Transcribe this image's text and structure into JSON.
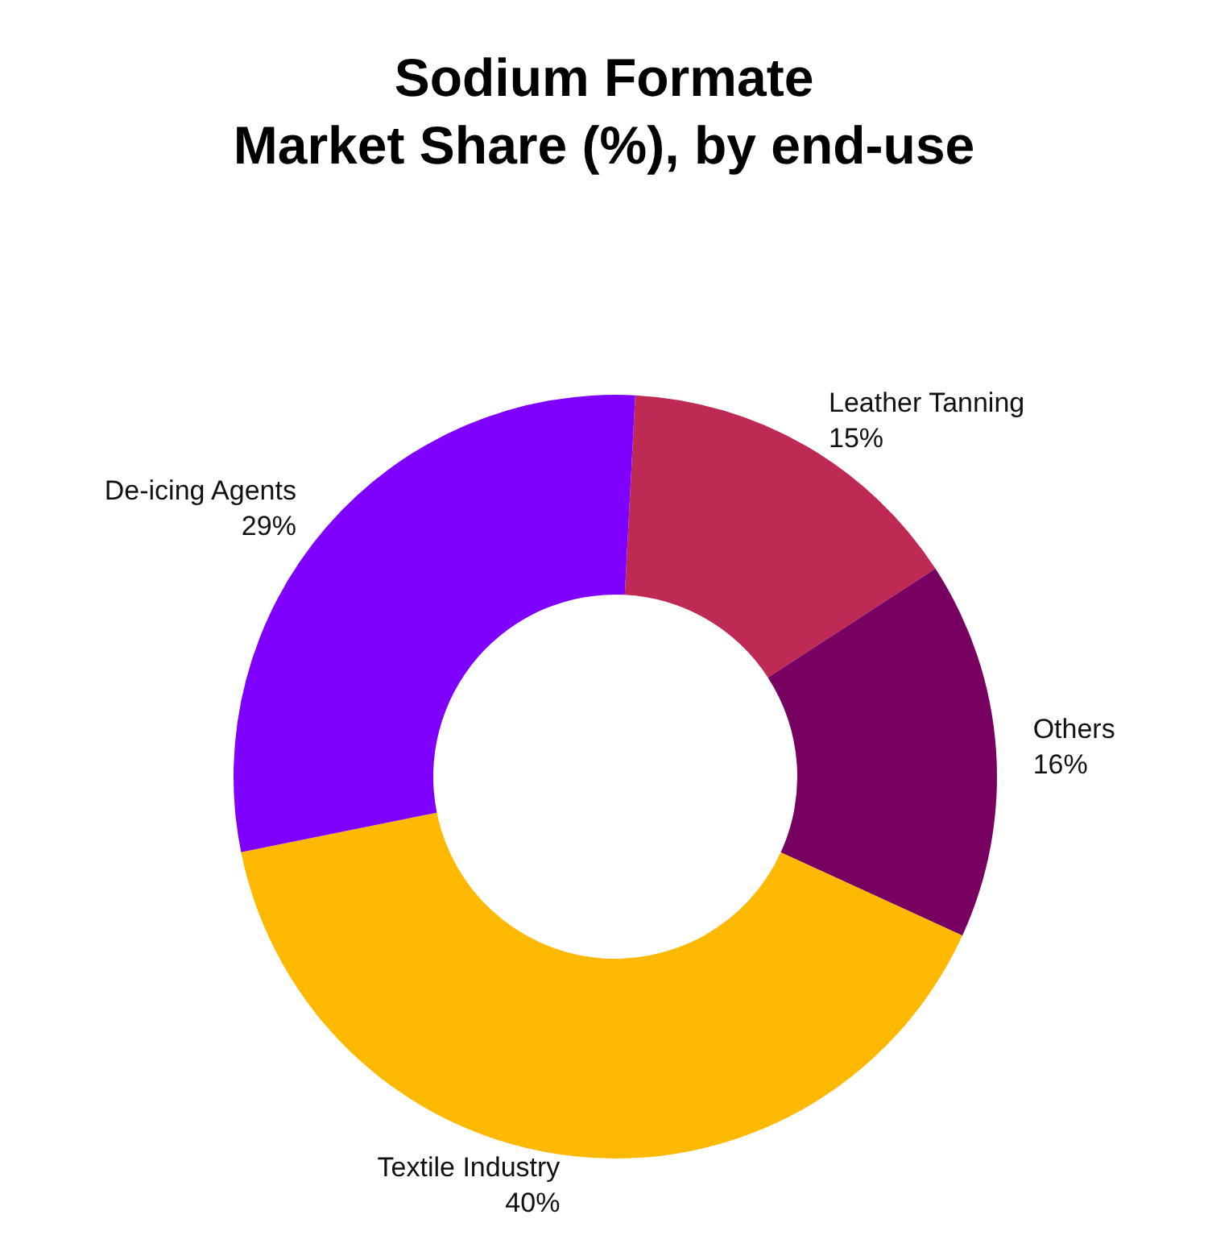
{
  "chart_data": {
    "type": "donut",
    "title": "Sodium Formate\nMarket Share (%), by end-use",
    "categories": [
      "Leather Tanning",
      "Others",
      "Textile Industry",
      "De-icing Agents"
    ],
    "values": [
      15,
      16,
      40,
      29
    ],
    "value_labels": [
      "15%",
      "16%",
      "40%",
      "29%"
    ],
    "colors": [
      "#bf2a55",
      "#780060",
      "#fdb900",
      "#7f00ff"
    ],
    "legend": false
  }
}
